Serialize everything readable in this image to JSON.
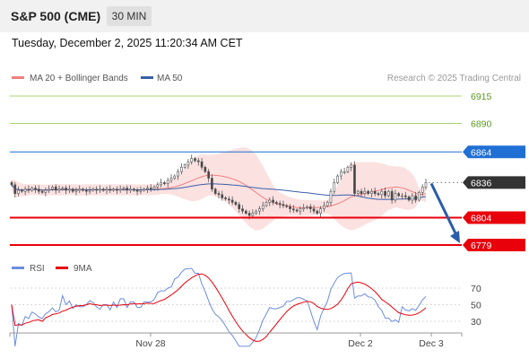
{
  "header": {
    "title": "S&P 500 (CME)",
    "interval": "30 MIN"
  },
  "datetime": "Tuesday, December 2, 2025 11:20:34 AM CET",
  "legend": {
    "ma20": "MA 20 + Bollinger Bands",
    "ma50": "MA 50"
  },
  "credit": "Research © 2025 Trading Central",
  "rsi_legend": {
    "rsi": "RSI",
    "ma": "9MA"
  },
  "colors": {
    "resistance": "#8dc63f",
    "pivot": "#1f6fd4",
    "support": "#e8000b",
    "last": "#333333",
    "ma20": "#f08080",
    "ma50": "#3a5ea8",
    "band": "#f9c8c8",
    "candle": "#555555",
    "rsi": "#6b8de0",
    "rsi_ma": "#e8000b",
    "arrow": "#2a5caa"
  },
  "chart_data": [
    {
      "type": "candlestick",
      "title": "S&P 500 (CME)",
      "interval": "30 MIN",
      "x_ticks": [
        "Nov 28",
        "Dec 2",
        "Dec 3"
      ],
      "ylim": [
        6770,
        6920
      ],
      "levels": [
        {
          "label": "6915",
          "value": 6915,
          "kind": "resistance"
        },
        {
          "label": "6890",
          "value": 6890,
          "kind": "resistance"
        },
        {
          "label": "6864",
          "value": 6864,
          "kind": "pivot"
        },
        {
          "label": "6836",
          "value": 6836,
          "kind": "last"
        },
        {
          "label": "6804",
          "value": 6804,
          "kind": "support"
        },
        {
          "label": "6779",
          "value": 6779,
          "kind": "support"
        }
      ],
      "forecast": {
        "from": 6836,
        "to": 6779,
        "direction": "down"
      },
      "close": [
        6834,
        6826,
        6829,
        6828,
        6830,
        6829,
        6831,
        6830,
        6828,
        6827,
        6829,
        6830,
        6832,
        6829,
        6830,
        6831,
        6829,
        6830,
        6828,
        6829,
        6830,
        6829,
        6828,
        6829,
        6830,
        6829,
        6830,
        6829,
        6830,
        6829,
        6830,
        6829,
        6830,
        6831,
        6829,
        6830,
        6829,
        6828,
        6829,
        6830,
        6831,
        6830,
        6832,
        6834,
        6836,
        6835,
        6838,
        6840,
        6842,
        6846,
        6850,
        6852,
        6855,
        6858,
        6856,
        6855,
        6850,
        6846,
        6840,
        6830,
        6826,
        6825,
        6822,
        6821,
        6820,
        6818,
        6816,
        6812,
        6810,
        6808,
        6806,
        6808,
        6810,
        6812,
        6815,
        6818,
        6820,
        6818,
        6817,
        6816,
        6815,
        6814,
        6812,
        6811,
        6810,
        6812,
        6813,
        6814,
        6812,
        6810,
        6808,
        6812,
        6815,
        6818,
        6828,
        6836,
        6842,
        6846,
        6846,
        6850,
        6852,
        6826,
        6828,
        6826,
        6828,
        6826,
        6828,
        6826,
        6825,
        6828,
        6824,
        6828,
        6820,
        6826,
        6824,
        6824,
        6823,
        6820,
        6824,
        6820,
        6827,
        6832,
        6836
      ],
      "series": [
        {
          "name": "RSI",
          "ylim": [
            20,
            80
          ],
          "ticks": [
            70,
            50,
            30
          ]
        },
        {
          "name": "9MA"
        }
      ]
    }
  ]
}
